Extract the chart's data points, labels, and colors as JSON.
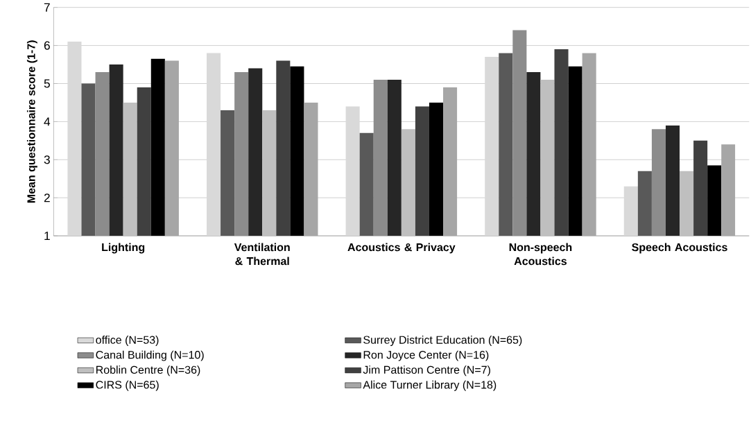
{
  "chart_data": {
    "type": "bar",
    "ylabel": "Mean questionnaire score  (1-7)",
    "categories": [
      "Lighting",
      "Ventilation & Thermal",
      "Acoustics & Privacy",
      "Non-speech Acoustics",
      "Speech Acoustics"
    ],
    "ylim": [
      1,
      7
    ],
    "yticks": [
      1,
      2,
      3,
      4,
      5,
      6,
      7
    ],
    "grid": "y",
    "legend": "bottom",
    "series": [
      {
        "name": "office (N=53)",
        "color": "#d9d9d9",
        "values": [
          6.1,
          5.8,
          4.4,
          5.7,
          2.3
        ]
      },
      {
        "name": "Surrey District  Education  (N=65)",
        "color": "#595959",
        "values": [
          5.0,
          4.3,
          3.7,
          5.8,
          2.7
        ]
      },
      {
        "name": "Canal Building (N=10)",
        "color": "#8c8c8c",
        "values": [
          5.3,
          5.3,
          5.1,
          6.4,
          3.8
        ]
      },
      {
        "name": "Ron Joyce Center (N=16)",
        "color": "#262626",
        "values": [
          5.5,
          5.4,
          5.1,
          5.3,
          3.9
        ]
      },
      {
        "name": "Roblin Centre (N=36)",
        "color": "#bfbfbf",
        "values": [
          4.5,
          4.3,
          3.8,
          5.1,
          2.7
        ]
      },
      {
        "name": "Jim Pattison Centre (N=7)",
        "color": "#404040",
        "values": [
          4.9,
          5.6,
          4.4,
          5.9,
          3.5
        ]
      },
      {
        "name": "CIRS (N=65)",
        "color": "#000000",
        "values": [
          5.65,
          5.45,
          4.5,
          5.45,
          2.85
        ]
      },
      {
        "name": "Alice Turner  Library (N=18)",
        "color": "#a6a6a6",
        "values": [
          5.6,
          4.5,
          4.9,
          5.8,
          3.4
        ]
      }
    ]
  }
}
